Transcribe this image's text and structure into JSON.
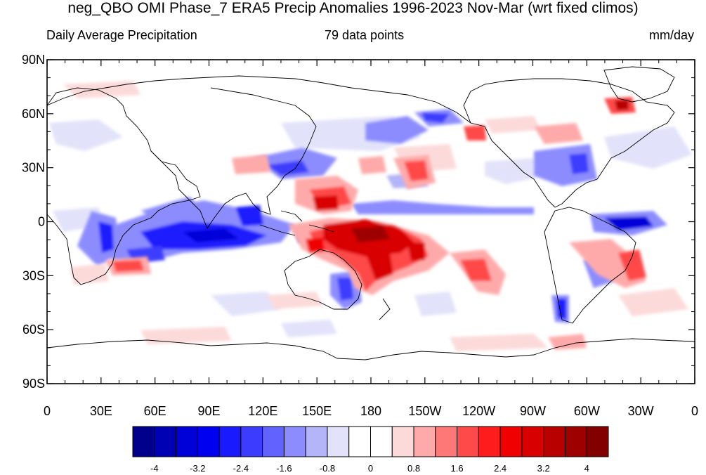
{
  "header": {
    "title": "neg_QBO OMI Phase_7 ERA5 Precip Anomalies 1996-2023 Nov-Mar (wrt fixed climos)",
    "left_label": "Daily Average Precipitation",
    "center_label": "79 data points",
    "right_label": "mm/day"
  },
  "map": {
    "projection": "cylindrical equidistant",
    "lat_labels": [
      "90N",
      "60N",
      "30N",
      "0",
      "30S",
      "60S",
      "90S"
    ],
    "lon_labels": [
      "0",
      "30E",
      "60E",
      "90E",
      "120E",
      "150E",
      "180",
      "150W",
      "120W",
      "90W",
      "60W",
      "30W",
      "0"
    ]
  },
  "colorbar": {
    "labels": [
      "-4",
      "-3.2",
      "-2.4",
      "-1.6",
      "-0.8",
      "0",
      "0.8",
      "1.6",
      "2.4",
      "3.2",
      "4"
    ],
    "colors": [
      "#00008c",
      "#0000b4",
      "#0000d8",
      "#0000f0",
      "#1a1aff",
      "#3c3cff",
      "#6262ff",
      "#8c8cff",
      "#b4b4f8",
      "#e2e2fa",
      "#ffffff",
      "#ffffff",
      "#fcdada",
      "#ffaaaa",
      "#ff7878",
      "#ff4a4a",
      "#ff1c1c",
      "#f00000",
      "#d80000",
      "#b80000",
      "#9e0000",
      "#820000"
    ]
  },
  "anomalies": {
    "positive_color": "#e00000",
    "negative_color": "#1a1acc"
  }
}
